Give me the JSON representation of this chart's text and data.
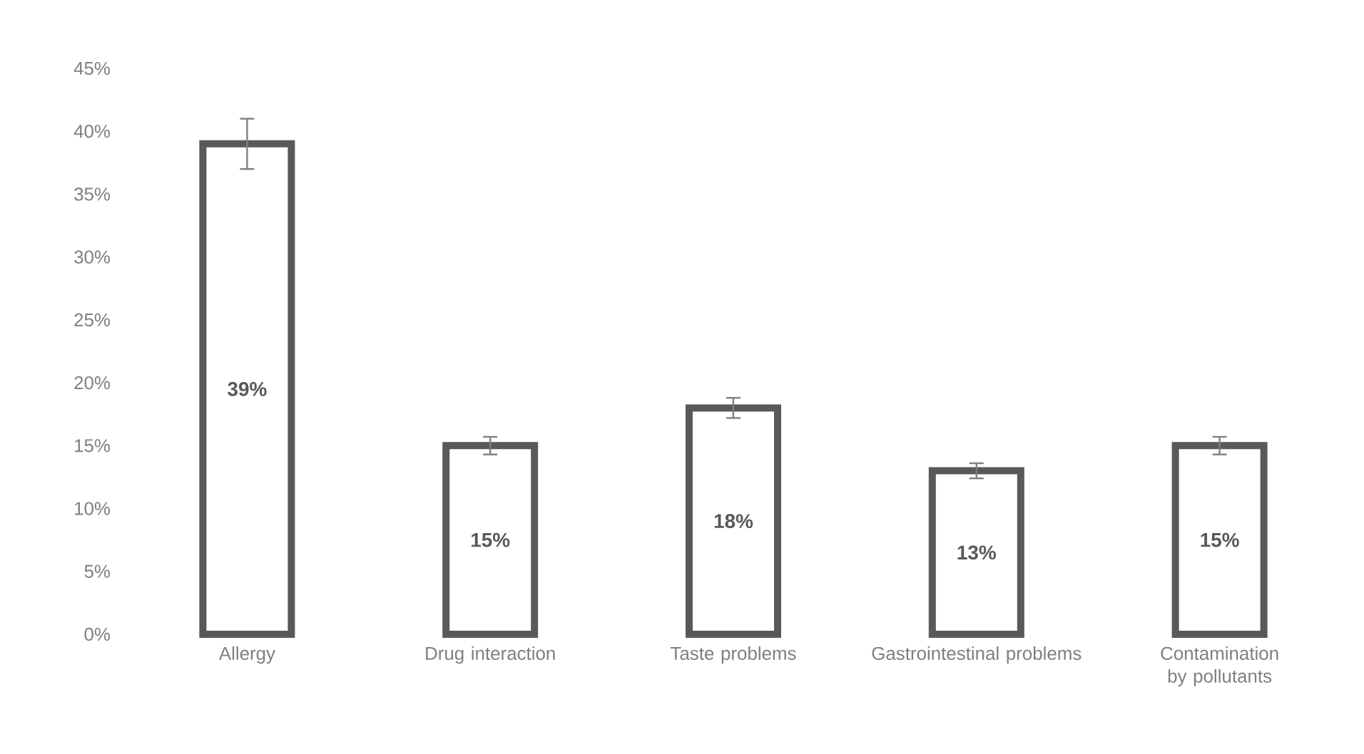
{
  "chart_data": {
    "type": "bar",
    "categories": [
      "Allergy",
      "Drug interaction",
      "Taste problems",
      "Gastrointestinal problems",
      "Contamination by pollutants"
    ],
    "values": [
      39,
      15,
      18,
      13,
      15
    ],
    "errors": [
      2,
      0.7,
      0.8,
      0.6,
      0.7
    ],
    "value_labels": [
      "39%",
      "15%",
      "18%",
      "13%",
      "15%"
    ],
    "color": "#595959",
    "ylim": [
      0,
      45
    ],
    "yticks": [
      {
        "value": 0,
        "label": "0%"
      },
      {
        "value": 5,
        "label": "5%"
      },
      {
        "value": 10,
        "label": "10%"
      },
      {
        "value": 15,
        "label": "15%"
      },
      {
        "value": 20,
        "label": "20%"
      },
      {
        "value": 25,
        "label": "25%"
      },
      {
        "value": 30,
        "label": "30%"
      },
      {
        "value": 35,
        "label": "35%"
      },
      {
        "value": 40,
        "label": "40%"
      },
      {
        "value": 45,
        "label": "45%"
      }
    ],
    "grid": false
  }
}
